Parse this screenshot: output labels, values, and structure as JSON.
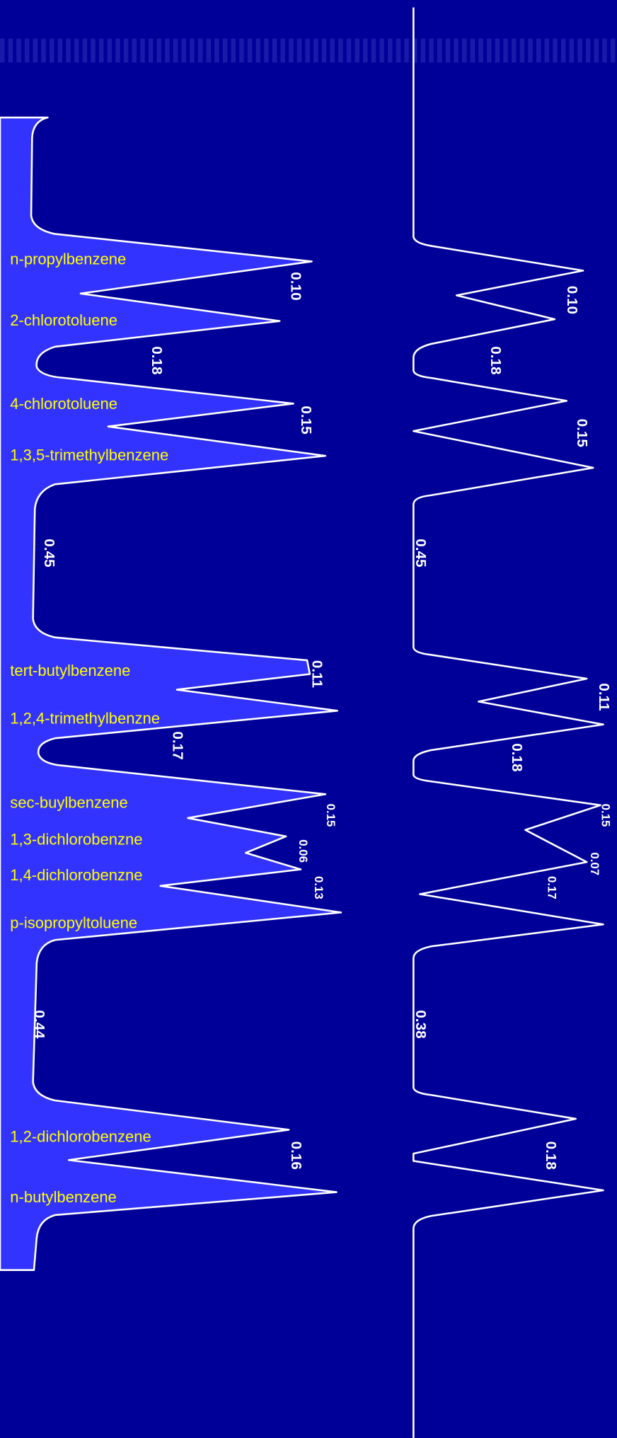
{
  "left_trace": {
    "compounds": [
      "n-propylbenzene",
      "2-chlorotoluene",
      "4-chlorotoluene",
      "1,3,5-trimethylbenzene",
      "tert-butylbenzene",
      "1,2,4-trimethylbenzne",
      "sec-buylbenzene",
      "1,3-dichlorobenzne",
      "1,4-dichlorobenzne",
      "p-isopropyltoluene",
      "1,2-dichlorobenzene",
      "n-butylbenzene"
    ],
    "values": [
      "0.10",
      "0.18",
      "0.15",
      "0.45",
      "0.11",
      "0.17",
      "0.15",
      "0.06",
      "0.13",
      "0.44",
      "0.16"
    ]
  },
  "right_trace": {
    "values": [
      "0.10",
      "0.18",
      "0.15",
      "0.45",
      "0.11",
      "0.18",
      "0.15",
      "0.07",
      "0.17",
      "0.38",
      "0.18"
    ]
  }
}
